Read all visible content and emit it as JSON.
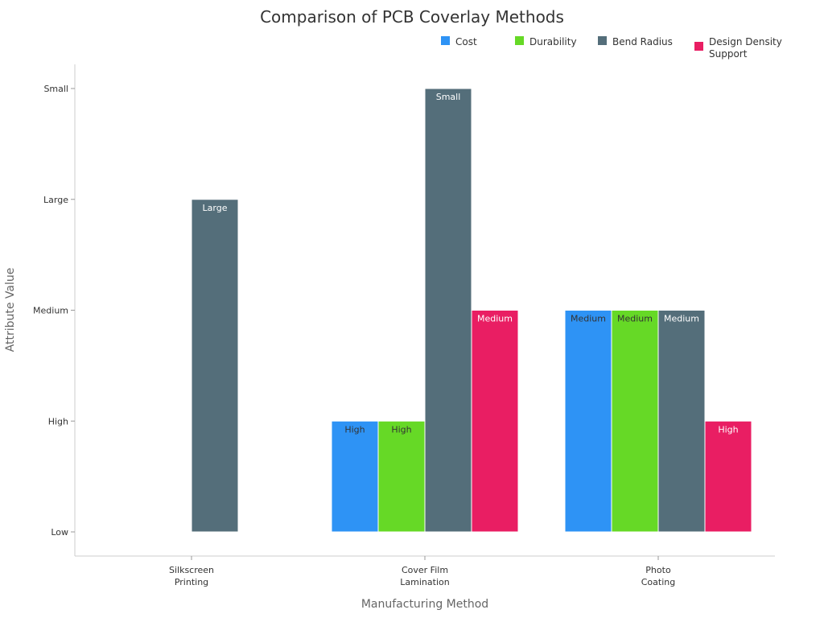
{
  "chart_data": {
    "type": "bar",
    "title": "Comparison of PCB Coverlay Methods",
    "xlabel": "Manufacturing Method",
    "ylabel": "Attribute Value",
    "y_levels": [
      "Low",
      "High",
      "Medium",
      "Large",
      "Small"
    ],
    "categories": [
      [
        "Silkscreen",
        "Printing"
      ],
      [
        "Cover Film",
        "Lamination"
      ],
      [
        "Photo",
        "Coating"
      ]
    ],
    "series": [
      {
        "name": [
          "Cost"
        ],
        "color": "#2e93f5",
        "label_color": "#333333",
        "values": [
          null,
          "High",
          "Medium"
        ]
      },
      {
        "name": [
          "Durability"
        ],
        "color": "#66d926",
        "label_color": "#333333",
        "values": [
          null,
          "High",
          "Medium"
        ]
      },
      {
        "name": [
          "Bend Radius"
        ],
        "color": "#546e7a",
        "label_color": "#ffffff",
        "values": [
          "Large",
          "Small",
          "Medium"
        ]
      },
      {
        "name": [
          "Design Density",
          "Support"
        ],
        "color": "#e91e63",
        "label_color": "#ffffff",
        "values": [
          null,
          "Medium",
          "High"
        ]
      }
    ],
    "legend": "top-right",
    "grid": false
  }
}
